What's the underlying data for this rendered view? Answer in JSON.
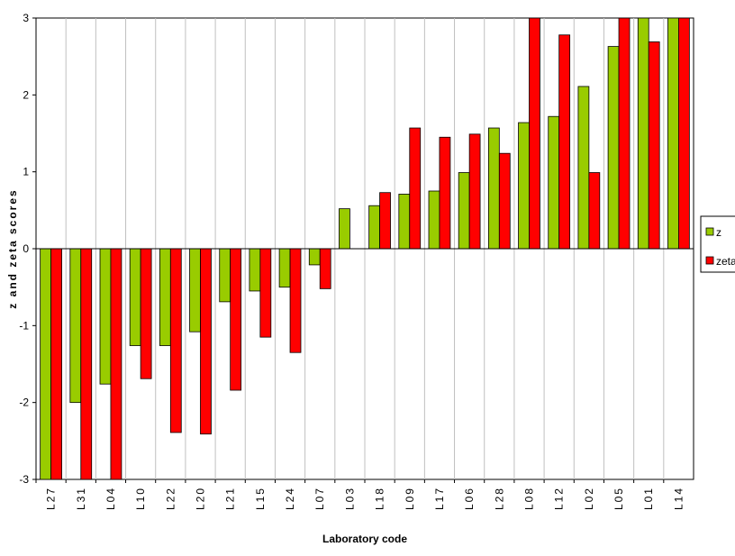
{
  "chart_data": {
    "type": "bar",
    "x_label": "Laboratory code",
    "y_label": "z and zeta scores",
    "categories": [
      "L27",
      "L31",
      "L04",
      "L10",
      "L22",
      "L20",
      "L21",
      "L15",
      "L24",
      "L07",
      "L03",
      "L18",
      "L09",
      "L17",
      "L06",
      "L28",
      "L08",
      "L12",
      "L02",
      "L05",
      "L01",
      "L14"
    ],
    "series": [
      {
        "name": "z",
        "color": "#99cc00",
        "values": [
          -3,
          -2.0,
          -1.76,
          -1.26,
          -1.26,
          -1.08,
          -0.69,
          -0.55,
          -0.5,
          -0.21,
          0.52,
          0.56,
          0.71,
          0.75,
          0.99,
          1.57,
          1.64,
          1.72,
          2.11,
          2.63,
          3,
          3
        ]
      },
      {
        "name": "zeta",
        "color": "#ff0000",
        "values": [
          -3,
          -3,
          -3,
          -1.69,
          -2.39,
          -2.41,
          -1.84,
          -1.15,
          -1.35,
          -0.52,
          null,
          0.73,
          1.57,
          1.45,
          1.49,
          1.24,
          3,
          2.78,
          0.99,
          3,
          2.69,
          3
        ]
      }
    ],
    "ylim": [
      -3,
      3
    ],
    "yticks": [
      -3,
      -2,
      -1,
      0,
      1,
      2,
      3
    ],
    "grid": true,
    "legend": "right"
  }
}
